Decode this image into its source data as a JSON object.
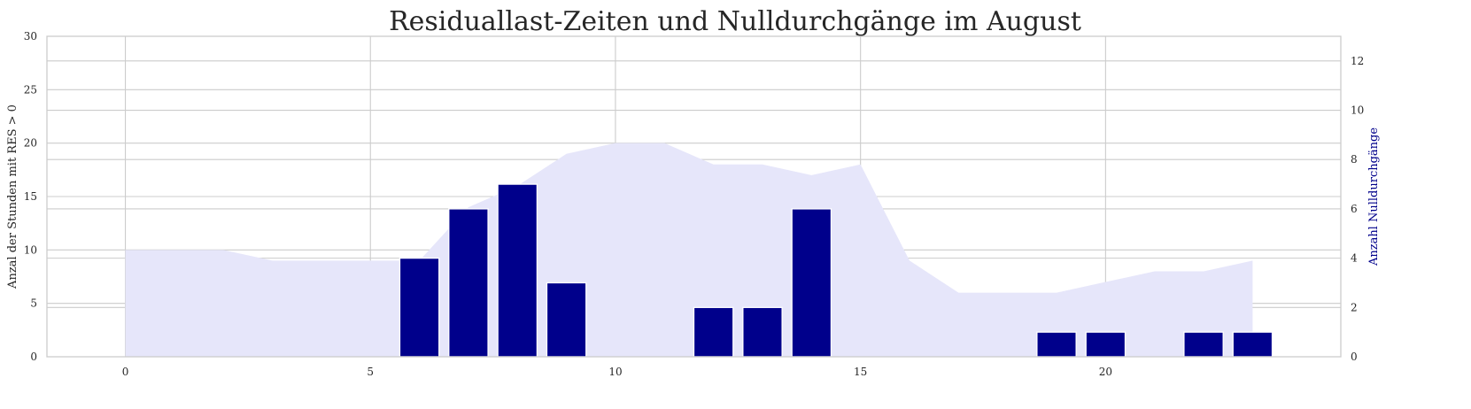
{
  "chart_data": {
    "type": "bar",
    "title": "Residuallast-Zeiten und Nulldurchgänge im August",
    "xlabel": "",
    "ylabel": "Anzal der Stunden mit RES > 0",
    "y2label": "Anzahl Nulldurchgänge",
    "xlim": [
      -1.6,
      24.8
    ],
    "xticks": [
      0,
      5,
      10,
      15,
      20
    ],
    "ylim": [
      0,
      30
    ],
    "yticks": [
      0,
      5,
      10,
      15,
      20,
      25,
      30
    ],
    "y2lim": [
      0,
      13
    ],
    "y2ticks": [
      0,
      2,
      4,
      6,
      8,
      10,
      12
    ],
    "grid": true,
    "area": {
      "axis": "left",
      "color": "#e6e6fa",
      "x": [
        0,
        1,
        2,
        3,
        4,
        5,
        6,
        7,
        8,
        9,
        10,
        11,
        12,
        13,
        14,
        15,
        16,
        17,
        18,
        19,
        20,
        21,
        22,
        23
      ],
      "values": [
        10,
        10,
        10,
        9,
        9,
        9,
        9,
        14,
        16,
        19,
        20,
        20,
        18,
        18,
        17,
        18,
        9,
        6,
        6,
        6,
        7,
        8,
        8,
        9
      ]
    },
    "bars": {
      "axis": "right",
      "color": "#00008b",
      "x": [
        0,
        1,
        2,
        3,
        4,
        5,
        6,
        7,
        8,
        9,
        10,
        11,
        12,
        13,
        14,
        15,
        16,
        17,
        18,
        19,
        20,
        21,
        22,
        23
      ],
      "values": [
        0,
        0,
        0,
        0,
        0,
        0,
        4,
        6,
        7,
        3,
        0,
        0,
        2,
        2,
        6,
        0,
        0,
        0,
        0,
        1,
        1,
        0,
        1,
        1
      ]
    }
  }
}
